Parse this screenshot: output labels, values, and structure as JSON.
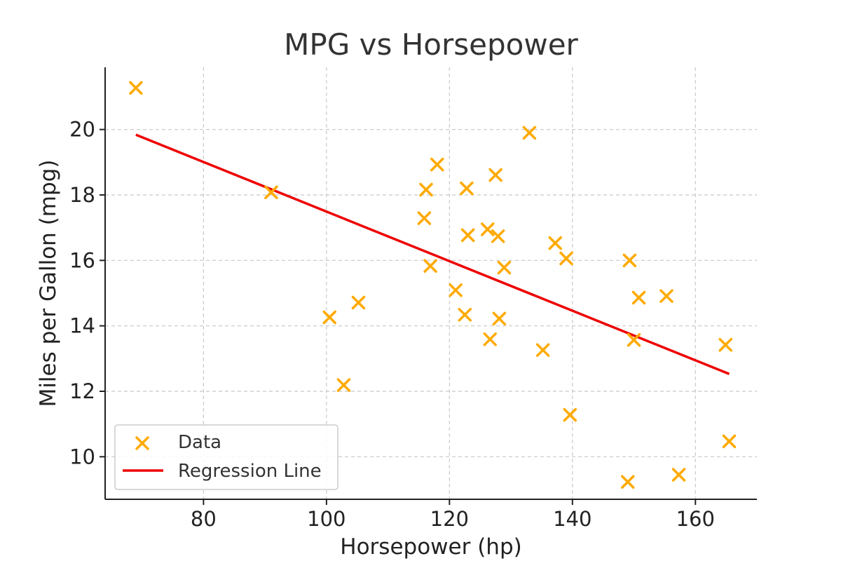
{
  "chart_data": {
    "type": "scatter",
    "title": "MPG vs Horsepower",
    "xlabel": "Horsepower (hp)",
    "ylabel": "Miles per Gallon (mpg)",
    "xlim": [
      64,
      170
    ],
    "ylim": [
      8.7,
      21.9
    ],
    "xticks": [
      80,
      100,
      120,
      140,
      160
    ],
    "yticks": [
      10,
      12,
      14,
      16,
      18,
      20
    ],
    "grid": true,
    "legend": {
      "placement": "bottom-left",
      "entries": [
        "Data",
        "Regression Line"
      ]
    },
    "colors": {
      "data": "#FFAA00",
      "regression": "#EE0000"
    },
    "series": [
      {
        "name": "Data",
        "kind": "scatter",
        "marker": "x",
        "x": [
          69.0,
          91.0,
          100.5,
          102.8,
          105.2,
          115.9,
          116.2,
          116.9,
          118.0,
          121.0,
          122.5,
          122.8,
          123.0,
          126.2,
          126.6,
          127.5,
          127.9,
          128.1,
          128.9,
          133.0,
          135.2,
          137.2,
          139.0,
          139.6,
          149.0,
          149.3,
          150.0,
          150.8,
          155.3,
          157.3,
          164.9,
          165.5
        ],
        "y": [
          21.27,
          18.08,
          14.26,
          12.19,
          14.71,
          17.29,
          18.16,
          15.83,
          18.93,
          15.09,
          14.34,
          18.2,
          16.77,
          16.95,
          13.59,
          18.61,
          16.74,
          14.22,
          15.78,
          19.9,
          13.26,
          16.53,
          16.06,
          11.28,
          9.23,
          16.0,
          13.57,
          14.86,
          14.91,
          9.45,
          13.42,
          10.47
        ]
      },
      {
        "name": "Regression Line",
        "kind": "line",
        "x": [
          69.0,
          165.5
        ],
        "y": [
          19.84,
          12.53
        ]
      }
    ]
  }
}
